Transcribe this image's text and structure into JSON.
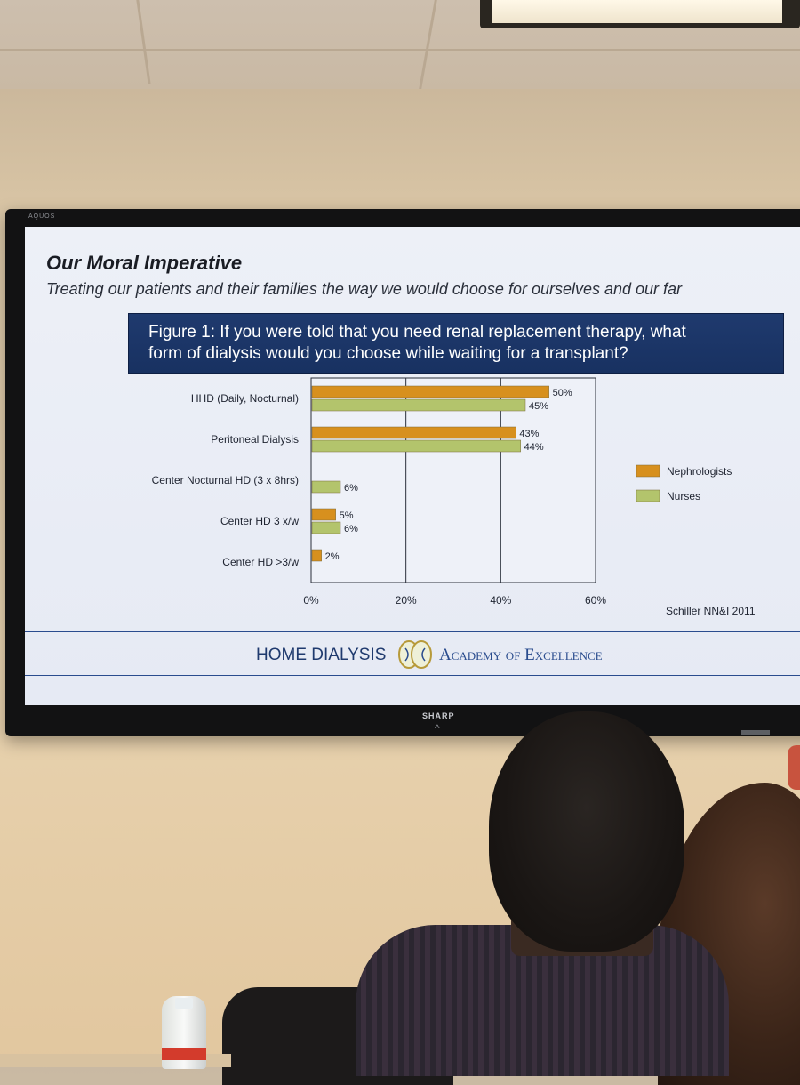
{
  "slide": {
    "title": "Our Moral Imperative",
    "subtitle": "Treating our patients and their families the way we would choose for ourselves and our far",
    "figure_line1": "Figure 1: If you were told that you need renal replacement therapy, what",
    "figure_line2": "form of dialysis would you choose while waiting for a transplant?",
    "source": "Schiller NN&I 2011",
    "footer_left": "HOME DIALYSIS",
    "footer_right": "Academy of Excellence"
  },
  "tv": {
    "brand": "SHARP",
    "brand_left": "AQUOS"
  },
  "chart_data": {
    "type": "bar",
    "orientation": "horizontal",
    "categories": [
      "HHD (Daily, Nocturnal)",
      "Peritoneal Dialysis",
      "Center Nocturnal HD (3 x 8hrs)",
      "Center HD 3 x/w",
      "Center HD >3/w"
    ],
    "series": [
      {
        "name": "Nephrologists",
        "color": "#d7901e",
        "values": [
          50,
          43,
          null,
          5,
          2
        ]
      },
      {
        "name": "Nurses",
        "color": "#b3c46c",
        "values": [
          45,
          44,
          6,
          6,
          null
        ]
      }
    ],
    "value_labels": {
      "Nephrologists": [
        "50%",
        "43%",
        "",
        "5%",
        "2%"
      ],
      "Nurses": [
        "45%",
        "44%",
        "6%",
        "6%",
        ""
      ]
    },
    "xlim": [
      0,
      60
    ],
    "xticks": [
      "0%",
      "20%",
      "40%",
      "60%"
    ],
    "grid": true,
    "legend_position": "right"
  }
}
